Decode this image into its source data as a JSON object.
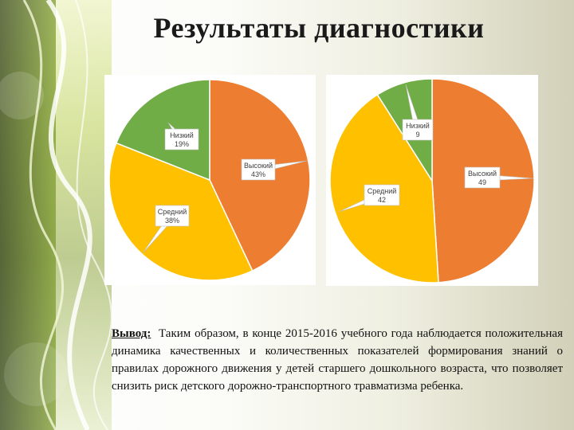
{
  "slide": {
    "title": "Результаты диагностики",
    "conclusion_label": "Вывод:",
    "conclusion_text": "Таким образом, в конце 2015-2016 учебного года наблюдается положительная динамика качественных и количественных показателей формирования знаний о правилах дорожного движения у детей старшего дошкольного возраста, что позволяет снизить риск детского дорожно-транспортного травматизма ребенка."
  },
  "chart_data": [
    {
      "type": "pie",
      "slices": [
        {
          "label": "Высокий",
          "value": 43,
          "display": "43%",
          "color": "#ED7D31"
        },
        {
          "label": "Средний",
          "value": 38,
          "display": "38%",
          "color": "#FFC000"
        },
        {
          "label": "Низкий",
          "value": 19,
          "display": "19%",
          "color": "#70AD47"
        }
      ],
      "legend": "none",
      "data_labels": "callouts"
    },
    {
      "type": "pie",
      "slices": [
        {
          "label": "Высокий",
          "value": 49,
          "display": "49",
          "color": "#ED7D31"
        },
        {
          "label": "Средний",
          "value": 42,
          "display": "42",
          "color": "#FFC000"
        },
        {
          "label": "Низкий",
          "value": 9,
          "display": "9",
          "color": "#70AD47"
        }
      ],
      "legend": "none",
      "data_labels": "callouts"
    }
  ]
}
